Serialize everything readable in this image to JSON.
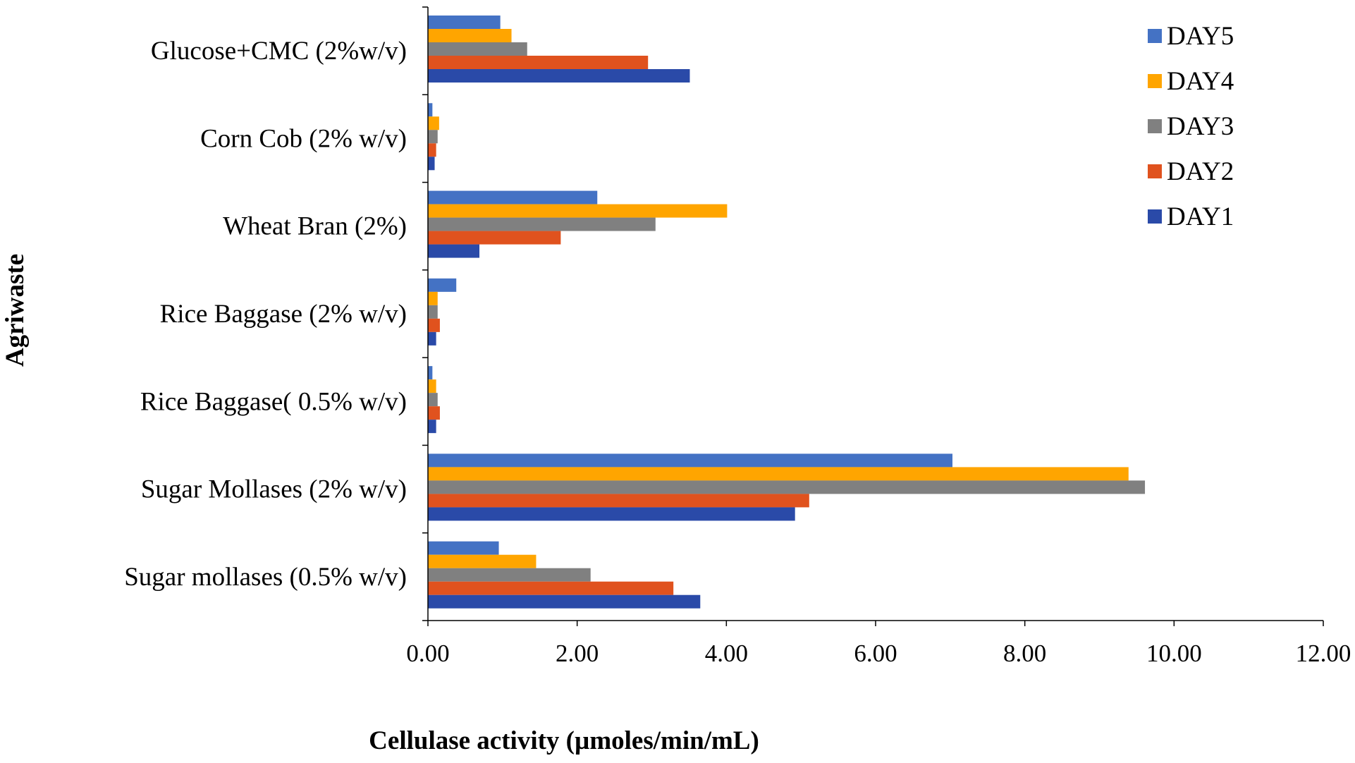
{
  "chart_data": {
    "type": "bar",
    "orientation": "horizontal",
    "categories": [
      "Glucose+CMC (2%w/v)",
      "Corn Cob (2% w/v)",
      "Wheat Bran (2%)",
      "Rice Baggase (2% w/v)",
      "Rice Baggase( 0.5% w/v)",
      "Sugar Mollases (2% w/v)",
      "Sugar mollases (0.5% w/v)"
    ],
    "series": [
      {
        "name": "DAY5",
        "color": "#4472C4",
        "values": [
          0.97,
          0.06,
          2.27,
          0.38,
          0.06,
          7.03,
          0.95
        ]
      },
      {
        "name": "DAY4",
        "color": "#FFA500",
        "values": [
          1.12,
          0.15,
          4.01,
          0.13,
          0.11,
          9.39,
          1.45
        ]
      },
      {
        "name": "DAY3",
        "color": "#808080",
        "values": [
          1.33,
          0.13,
          3.05,
          0.13,
          0.13,
          9.61,
          2.18
        ]
      },
      {
        "name": "DAY2",
        "color": "#E0521E",
        "values": [
          2.95,
          0.11,
          1.78,
          0.16,
          0.16,
          5.11,
          3.29
        ]
      },
      {
        "name": "DAY1",
        "color": "#2A4AA8",
        "values": [
          3.51,
          0.09,
          0.69,
          0.11,
          0.11,
          4.92,
          3.65
        ]
      }
    ],
    "xticks": [
      "0.00",
      "2.00",
      "4.00",
      "6.00",
      "8.00",
      "10.00",
      "12.00"
    ],
    "xlim": [
      0,
      12
    ],
    "xlabel": "Cellulase activity (µmoles/min/mL)",
    "ylabel": "Agriwaste",
    "legend_position": "top-right",
    "grid": false
  }
}
